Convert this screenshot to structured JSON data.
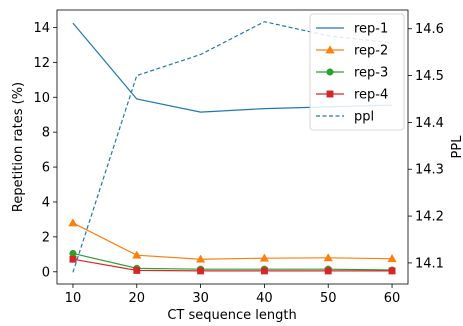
{
  "chart_data": {
    "type": "line",
    "x": [
      10,
      20,
      30,
      40,
      50,
      60
    ],
    "xlabel": "CT sequence length",
    "ylabel": "Repetition rates (%)",
    "y2label": "PPL",
    "xlim": [
      7.5,
      62.5
    ],
    "ylim": [
      -0.7,
      15.0
    ],
    "y2lim": [
      14.055,
      14.64
    ],
    "xticks": [
      "10",
      "20",
      "30",
      "40",
      "50",
      "60"
    ],
    "yticks": [
      "0",
      "2",
      "4",
      "6",
      "8",
      "10",
      "12",
      "14"
    ],
    "y2ticks": [
      "14.1",
      "14.2",
      "14.3",
      "14.4",
      "14.5",
      "14.6"
    ],
    "legend_position": "top-right",
    "grid": false,
    "series": [
      {
        "name": "rep-1",
        "axis": "left",
        "color": "#1f77b4",
        "marker": "none",
        "dash": false,
        "values": [
          14.25,
          9.9,
          9.15,
          9.35,
          9.45,
          9.55
        ]
      },
      {
        "name": "rep-2",
        "axis": "left",
        "color": "#ff7f0e",
        "marker": "triangle",
        "dash": false,
        "values": [
          2.8,
          0.95,
          0.72,
          0.78,
          0.8,
          0.75
        ]
      },
      {
        "name": "rep-3",
        "axis": "left",
        "color": "#2ca02c",
        "marker": "circle",
        "dash": false,
        "values": [
          1.05,
          0.2,
          0.15,
          0.15,
          0.15,
          0.1
        ]
      },
      {
        "name": "rep-4",
        "axis": "left",
        "color": "#d62728",
        "marker": "square",
        "dash": false,
        "values": [
          0.72,
          0.08,
          0.05,
          0.05,
          0.05,
          0.05
        ]
      },
      {
        "name": "ppl",
        "axis": "right",
        "color": "#1f77b4",
        "marker": "none",
        "dash": true,
        "values": [
          14.08,
          14.5,
          14.545,
          14.615,
          14.585,
          14.57
        ]
      }
    ]
  }
}
